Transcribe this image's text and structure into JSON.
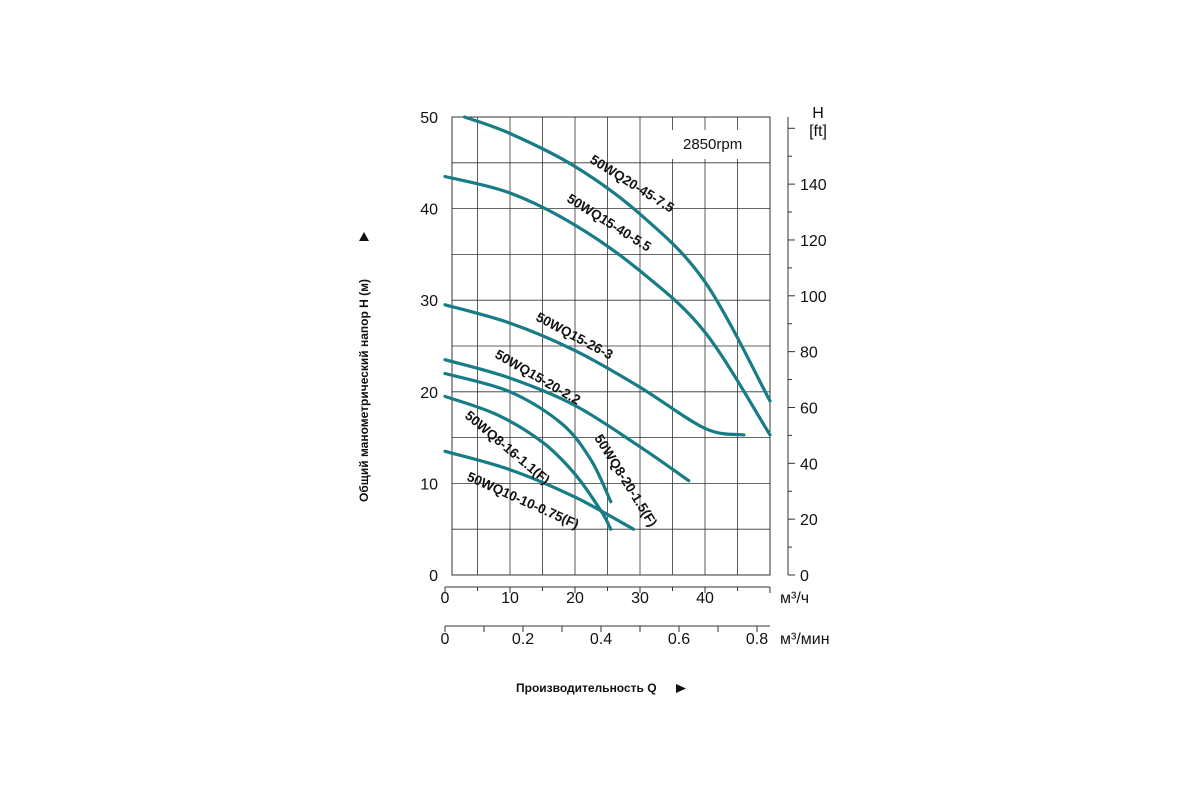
{
  "chart_data": {
    "type": "line",
    "rpm_label": "2850rpm",
    "ylabel": "Общий манометрический напор H (м)",
    "xlabel": "Производительность Q",
    "y_left": {
      "ticks": [
        "0",
        "10",
        "20",
        "30",
        "40",
        "50"
      ],
      "ylim": [
        0,
        50
      ]
    },
    "y_right": {
      "unit_top": "H",
      "unit_bottom": "[ft]",
      "ticks": [
        "0",
        "20",
        "40",
        "60",
        "80",
        "100",
        "120",
        "140"
      ],
      "range_ft": [
        0,
        164
      ]
    },
    "x_m3h": {
      "unit": "м³/ч",
      "ticks": [
        "0",
        "10",
        "20",
        "30",
        "40"
      ],
      "xlim": [
        0,
        50
      ]
    },
    "x_m3min": {
      "unit": "м³/мин",
      "ticks": [
        "0",
        "0.2",
        "0.4",
        "0.6",
        "0.8"
      ]
    },
    "grid": true,
    "series": [
      {
        "name": "50WQ20-45-7.5",
        "points": [
          [
            3,
            50
          ],
          [
            10,
            48.2
          ],
          [
            20,
            44.6
          ],
          [
            30,
            39.4
          ],
          [
            40,
            32
          ],
          [
            50,
            19
          ]
        ]
      },
      {
        "name": "50WQ15-40-5.5",
        "points": [
          [
            0,
            43.5
          ],
          [
            10,
            41.7
          ],
          [
            20,
            38.2
          ],
          [
            30,
            33.2
          ],
          [
            40,
            26.5
          ],
          [
            50,
            15.3
          ]
        ]
      },
      {
        "name": "50WQ15-26-3",
        "points": [
          [
            0,
            29.5
          ],
          [
            10,
            27.5
          ],
          [
            20,
            24.5
          ],
          [
            30,
            20.5
          ],
          [
            40,
            16
          ],
          [
            46,
            15.3
          ]
        ]
      },
      {
        "name": "50WQ15-20-2.2",
        "points": [
          [
            0,
            23.5
          ],
          [
            10,
            21.5
          ],
          [
            20,
            18.5
          ],
          [
            30,
            14
          ],
          [
            37.5,
            10.3
          ]
        ]
      },
      {
        "name": "50WQ8-20-1.5(F)",
        "points": [
          [
            0,
            22
          ],
          [
            10,
            20
          ],
          [
            18,
            16.5
          ],
          [
            22.5,
            12.5
          ],
          [
            25.5,
            8
          ]
        ]
      },
      {
        "name": "50WQ8-16-1.1(F)",
        "points": [
          [
            0,
            19.5
          ],
          [
            8,
            17.5
          ],
          [
            15,
            14.5
          ],
          [
            20,
            11
          ],
          [
            24,
            7
          ],
          [
            25.5,
            5
          ]
        ]
      },
      {
        "name": "50WQ10-10-0.75(F)",
        "points": [
          [
            0,
            13.5
          ],
          [
            10,
            11.5
          ],
          [
            20,
            8.5
          ],
          [
            29,
            5
          ]
        ]
      }
    ],
    "colors": {
      "curve": "#177c86",
      "grid": "#333333"
    }
  }
}
